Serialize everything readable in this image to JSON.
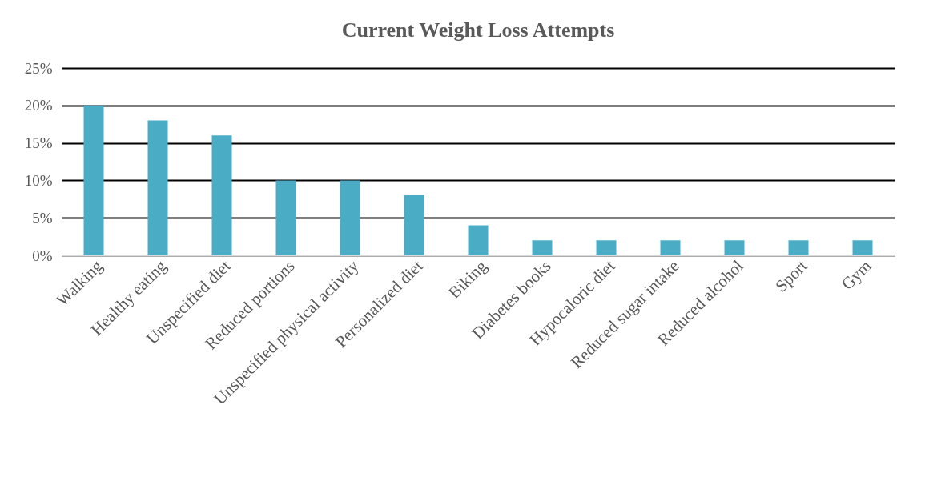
{
  "chart_data": {
    "type": "bar",
    "title": "Current Weight Loss Attempts",
    "categories": [
      "Walking",
      "Healthy eating",
      "Unspecified diet",
      "Reduced portions",
      "Unspecified physical activity",
      "Personalized diet",
      "Biking",
      "Diabetes books",
      "Hypocaloric diet",
      "Reduced sugar intake",
      "Reduced alcohol",
      "Sport",
      "Gym"
    ],
    "values": [
      20,
      18,
      16,
      10,
      10,
      8,
      4,
      2,
      2,
      2,
      2,
      2,
      2
    ],
    "color": "#4bacc6",
    "ylim": [
      0,
      25
    ],
    "yticks": [
      {
        "value": 0,
        "label": "0%"
      },
      {
        "value": 5,
        "label": "5%"
      },
      {
        "value": 10,
        "label": "10%"
      },
      {
        "value": 15,
        "label": "15%"
      },
      {
        "value": 20,
        "label": "20%"
      },
      {
        "value": 25,
        "label": "25%"
      }
    ],
    "grid": "y"
  }
}
